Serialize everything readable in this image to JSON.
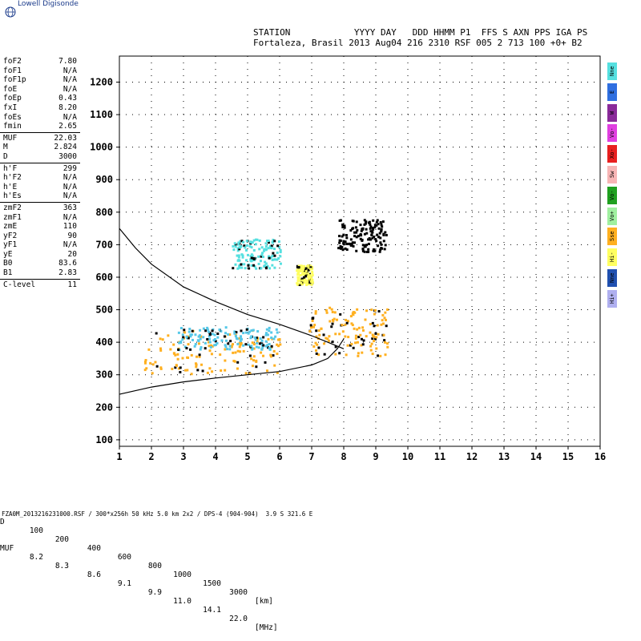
{
  "app": {
    "logo_text": "Lowell Digisonde"
  },
  "header": {
    "line1": "STATION            YYYY DAY   DDD HHMM P1  FFS S AXN PPS IGA PS",
    "line2": "Fortaleza, Brasil 2013 Aug04 216 2310 RSF 005 2 713 100 +0+ B2"
  },
  "scaled_params": [
    [
      {
        "k": "foF2",
        "v": "7.80"
      },
      {
        "k": "foF1",
        "v": "N/A"
      },
      {
        "k": "foF1p",
        "v": "N/A"
      },
      {
        "k": "foE",
        "v": "N/A"
      },
      {
        "k": "foEp",
        "v": "0.43"
      },
      {
        "k": "fxI",
        "v": "8.20"
      },
      {
        "k": "foEs",
        "v": "N/A"
      },
      {
        "k": "fmin",
        "v": "2.65"
      }
    ],
    [
      {
        "k": "MUF",
        "v": "22.03"
      },
      {
        "k": "M",
        "v": "2.824"
      },
      {
        "k": "D",
        "v": "3000"
      }
    ],
    [
      {
        "k": "h'F",
        "v": "299"
      },
      {
        "k": "h'F2",
        "v": "N/A"
      },
      {
        "k": "h'E",
        "v": "N/A"
      },
      {
        "k": "h'Es",
        "v": "N/A"
      }
    ],
    [
      {
        "k": "zmF2",
        "v": "363"
      },
      {
        "k": "zmF1",
        "v": "N/A"
      },
      {
        "k": "zmE",
        "v": "110"
      },
      {
        "k": "yF2",
        "v": "90"
      },
      {
        "k": "yF1",
        "v": "N/A"
      },
      {
        "k": "yE",
        "v": "20"
      },
      {
        "k": "B0",
        "v": "83.6"
      },
      {
        "k": "B1",
        "v": "2.83"
      }
    ],
    [
      {
        "k": "C-level",
        "v": "11"
      }
    ]
  ],
  "muf_table": {
    "d_label": "D",
    "d_values": [
      "100",
      "200",
      "400",
      "600",
      "800",
      "1000",
      "1500",
      "3000"
    ],
    "d_unit": "[km]",
    "muf_label": "MUF",
    "muf_values": [
      "8.2",
      "8.3",
      "8.6",
      "9.1",
      "9.9",
      "11.0",
      "14.1",
      "22.0"
    ],
    "muf_unit": "[MHz]"
  },
  "footer": "FZA0M_2013216231000.RSF / 300*x256h 50 kHz 5.0 km 2x2 / DPS-4 (904-904)  3.9 S 321.6 E",
  "legend": [
    {
      "label": "Nne",
      "color": "#55e0e0"
    },
    {
      "label": "E",
      "color": "#2f6fe0"
    },
    {
      "label": "W",
      "color": "#8a2a9a"
    },
    {
      "label": "Vo-",
      "color": "#e040e0"
    },
    {
      "label": "Xo-",
      "color": "#e82020"
    },
    {
      "label": "Sw",
      "color": "#f7b5b5"
    },
    {
      "label": "Vo-",
      "color": "#20a020"
    },
    {
      "label": "Vo+",
      "color": "#a0f0a0"
    },
    {
      "label": "Sse",
      "color": "#ffb020"
    },
    {
      "label": "Hi-",
      "color": "#ffff60"
    },
    {
      "label": "Nne",
      "color": "#2050b0"
    },
    {
      "label": "Hi+",
      "color": "#b0b0f0"
    }
  ],
  "chart_data": {
    "type": "scatter",
    "title": "",
    "xlabel": "",
    "ylabel": "",
    "xlim": [
      1,
      16
    ],
    "ylim": [
      80,
      1280
    ],
    "x_ticks": [
      1,
      2,
      3,
      4,
      5,
      6,
      7,
      8,
      9,
      10,
      11,
      12,
      13,
      14,
      15,
      16
    ],
    "y_ticks": [
      100,
      200,
      300,
      400,
      500,
      600,
      700,
      800,
      900,
      1000,
      1100,
      1200
    ],
    "grid": true,
    "clusters": [
      {
        "name": "F2 ordinary trace",
        "x_range": [
          1.75,
          6.0
        ],
        "y_range": [
          305,
          440
        ],
        "color": "#ffb020"
      },
      {
        "name": "F2 trace upper",
        "x_range": [
          2.8,
          5.9
        ],
        "y_range": [
          380,
          450
        ],
        "color": "#55c8e8"
      },
      {
        "name": "F2 cusp",
        "x_range": [
          6.9,
          9.4
        ],
        "y_range": [
          360,
          510
        ],
        "color": "#ffb020"
      },
      {
        "name": "second hop",
        "x_range": [
          4.5,
          6.0
        ],
        "y_range": [
          630,
          720
        ],
        "color": "#55e0e0"
      },
      {
        "name": "spread high",
        "x_range": [
          7.8,
          9.3
        ],
        "y_range": [
          680,
          780
        ],
        "color": "#000000"
      },
      {
        "name": "yellow patch",
        "x_range": [
          6.5,
          7.0
        ],
        "y_range": [
          580,
          640
        ],
        "color": "#ffff60"
      }
    ],
    "lines": [
      {
        "name": "MUF profile",
        "points": [
          [
            1.0,
            750
          ],
          [
            1.5,
            690
          ],
          [
            2.0,
            640
          ],
          [
            3.0,
            570
          ],
          [
            4.0,
            525
          ],
          [
            5.0,
            485
          ],
          [
            6.0,
            455
          ],
          [
            7.0,
            420
          ],
          [
            7.5,
            400
          ],
          [
            8.0,
            380
          ]
        ]
      },
      {
        "name": "true height",
        "points": [
          [
            1.0,
            240
          ],
          [
            2.0,
            262
          ],
          [
            3.0,
            278
          ],
          [
            4.0,
            290
          ],
          [
            5.0,
            300
          ],
          [
            6.0,
            310
          ],
          [
            7.0,
            330
          ],
          [
            7.5,
            350
          ],
          [
            7.8,
            380
          ],
          [
            8.0,
            410
          ]
        ]
      }
    ]
  }
}
